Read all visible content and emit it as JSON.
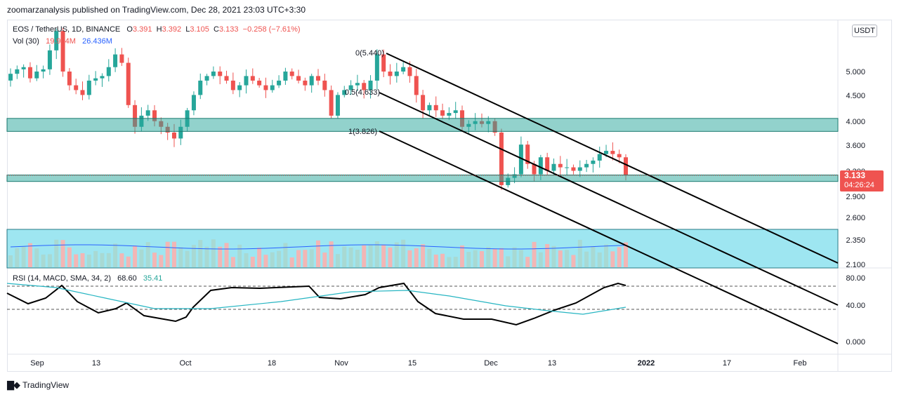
{
  "header": {
    "published": "zoomarzanalysis published on TradingView.com, Dec 28, 2021 23:03 UTC+3:30"
  },
  "legend": {
    "symbol": "EOS / TetherUS, 1D, BINANCE",
    "o_label": "O",
    "o_value": "3.391",
    "h_label": "H",
    "h_value": "3.392",
    "l_label": "L",
    "l_value": "3.105",
    "c_label": "C",
    "c_value": "3.133",
    "change": "−0.258 (−7.61%)",
    "vol_label": "Vol (30)",
    "vol_value": "19.944M",
    "vol_ma": "26.436M",
    "rsi_label": "RSI (14, MACD, SMA, 34, 2)",
    "rsi_value": "68.60",
    "rsi_ma": "35.41"
  },
  "price_axis": {
    "currency": "USDT",
    "ticks": [
      "6.",
      "5.000",
      "4.500",
      "4.000",
      "3.600",
      "3.300",
      "2.900",
      "2.600",
      "2.350",
      "2.100"
    ],
    "last_price": "3.133",
    "countdown": "04:26:24"
  },
  "rsi_axis": {
    "ticks": [
      "80.00",
      "40.00",
      "0.000"
    ]
  },
  "time_axis": {
    "ticks": [
      "Sep",
      "13",
      "Oct",
      "18",
      "Nov",
      "15",
      "Dec",
      "13",
      "2022",
      "17",
      "Feb"
    ]
  },
  "annotations": {
    "fib_0": "0(5.440)",
    "fib_05": "0.5(4.633)",
    "fib_1": "1(3.826)"
  },
  "brand": {
    "name": "TradingView"
  },
  "colors": {
    "up": "#26a69a",
    "down": "#ef5350",
    "zone": "#26a69a",
    "vol_zone": "#5ed6e8",
    "rsi": "#000000",
    "rsi_ma": "#26b5c2"
  },
  "chart_data": [
    {
      "type": "candlestick",
      "symbol": "EOS / TetherUS",
      "interval": "1D",
      "y_scale": "log",
      "ylim": [
        2.1,
        6.0
      ],
      "last": {
        "open": 3.391,
        "high": 3.392,
        "low": 3.105,
        "close": 3.133
      },
      "approx_closes": [
        4.95,
        5.05,
        5.1,
        4.85,
        5.0,
        5.05,
        5.5,
        6.0,
        5.0,
        4.7,
        4.6,
        4.5,
        4.8,
        4.85,
        4.9,
        5.1,
        5.4,
        5.2,
        4.3,
        3.9,
        4.1,
        4.2,
        4.0,
        3.9,
        3.8,
        3.7,
        3.9,
        4.2,
        4.5,
        4.8,
        4.9,
        5.0,
        4.9,
        4.8,
        4.6,
        4.7,
        4.9,
        4.8,
        4.7,
        4.6,
        4.7,
        4.8,
        5.0,
        4.9,
        4.8,
        4.7,
        4.9,
        4.8,
        4.6,
        4.1,
        4.5,
        4.6,
        4.7,
        4.75,
        4.6,
        4.8,
        5.4,
        5.0,
        4.9,
        5.0,
        5.1,
        4.9,
        4.5,
        4.2,
        4.3,
        4.2,
        4.1,
        4.15,
        4.2,
        3.9,
        3.95,
        4.0,
        3.95,
        4.0,
        3.8,
        3.0,
        3.1,
        3.15,
        3.6,
        3.3,
        3.15,
        3.4,
        3.2,
        3.3,
        3.25,
        3.25,
        3.2,
        3.25,
        3.3,
        3.35,
        3.45,
        3.5,
        3.45,
        3.4,
        3.133
      ],
      "zones": [
        {
          "name": "resistance",
          "from": 3.82,
          "to": 4.05
        },
        {
          "name": "support",
          "from": 3.05,
          "to": 3.14
        }
      ],
      "channel": {
        "fib_0": 5.44,
        "fib_05": 4.633,
        "fib_1": 3.826
      }
    },
    {
      "type": "histogram",
      "name": "Volume",
      "last_value_label": "19.944M",
      "ma_label": "26.436M"
    },
    {
      "type": "line",
      "name": "RSI (14, MACD, SMA, 34, 2)",
      "ylim": [
        0,
        100
      ],
      "levels": [
        70,
        30
      ],
      "series": [
        {
          "name": "RSI",
          "last": 68.6
        },
        {
          "name": "RSI MA",
          "last": 35.41
        }
      ]
    }
  ]
}
